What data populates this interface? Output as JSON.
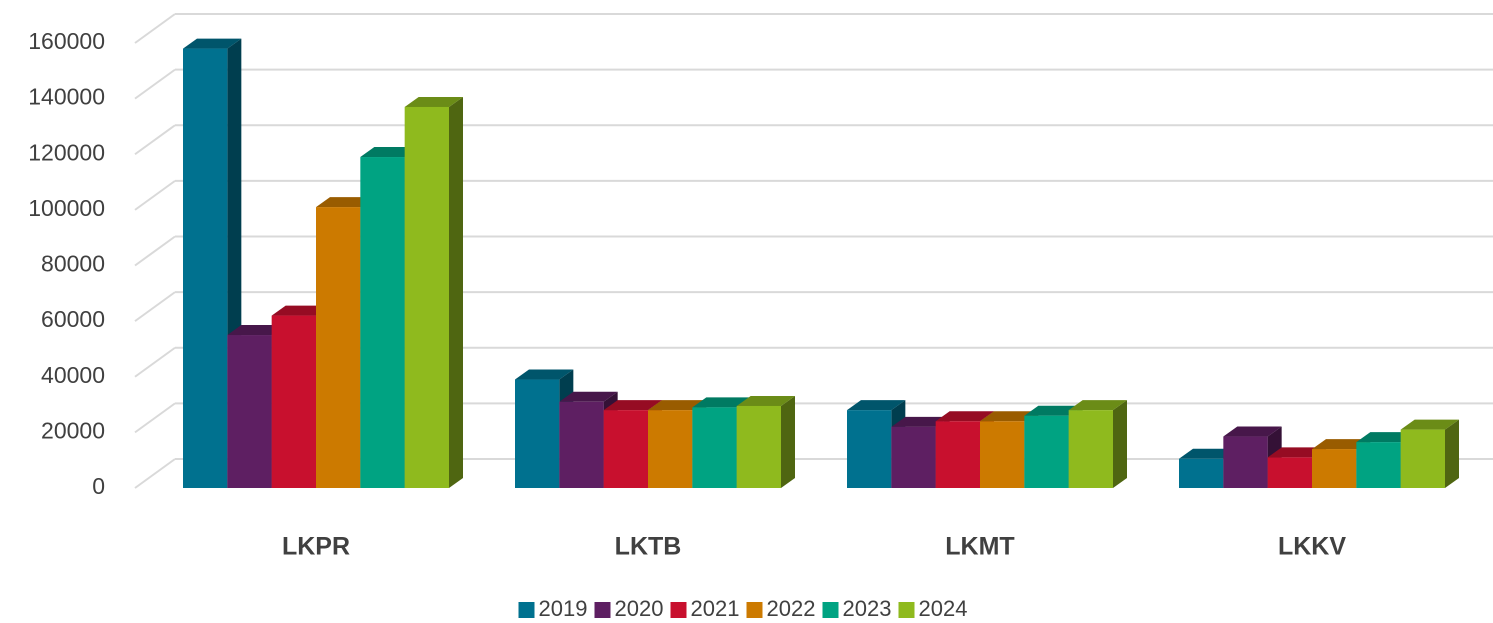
{
  "chart_data": {
    "type": "bar3d",
    "categories": [
      "LKPR",
      "LKTB",
      "LKMT",
      "LKKV"
    ],
    "series": [
      {
        "name": "2019",
        "color": "#00718f",
        "values": [
          158000,
          39000,
          28000,
          10500
        ]
      },
      {
        "name": "2020",
        "color": "#5e1f62",
        "values": [
          55000,
          31000,
          22000,
          18500
        ]
      },
      {
        "name": "2021",
        "color": "#c8102e",
        "values": [
          62000,
          28000,
          24000,
          11000
        ]
      },
      {
        "name": "2022",
        "color": "#cc7a00",
        "values": [
          101000,
          28000,
          24000,
          14000
        ]
      },
      {
        "name": "2023",
        "color": "#00a382",
        "values": [
          119000,
          29000,
          26000,
          16500
        ]
      },
      {
        "name": "2024",
        "color": "#8fba1e",
        "values": [
          137000,
          29500,
          28000,
          21000
        ]
      }
    ],
    "ylim": [
      0,
      160000
    ],
    "yticks": [
      0,
      20000,
      40000,
      60000,
      80000,
      100000,
      120000,
      140000,
      160000
    ],
    "grid": true,
    "legend": "bottom"
  }
}
